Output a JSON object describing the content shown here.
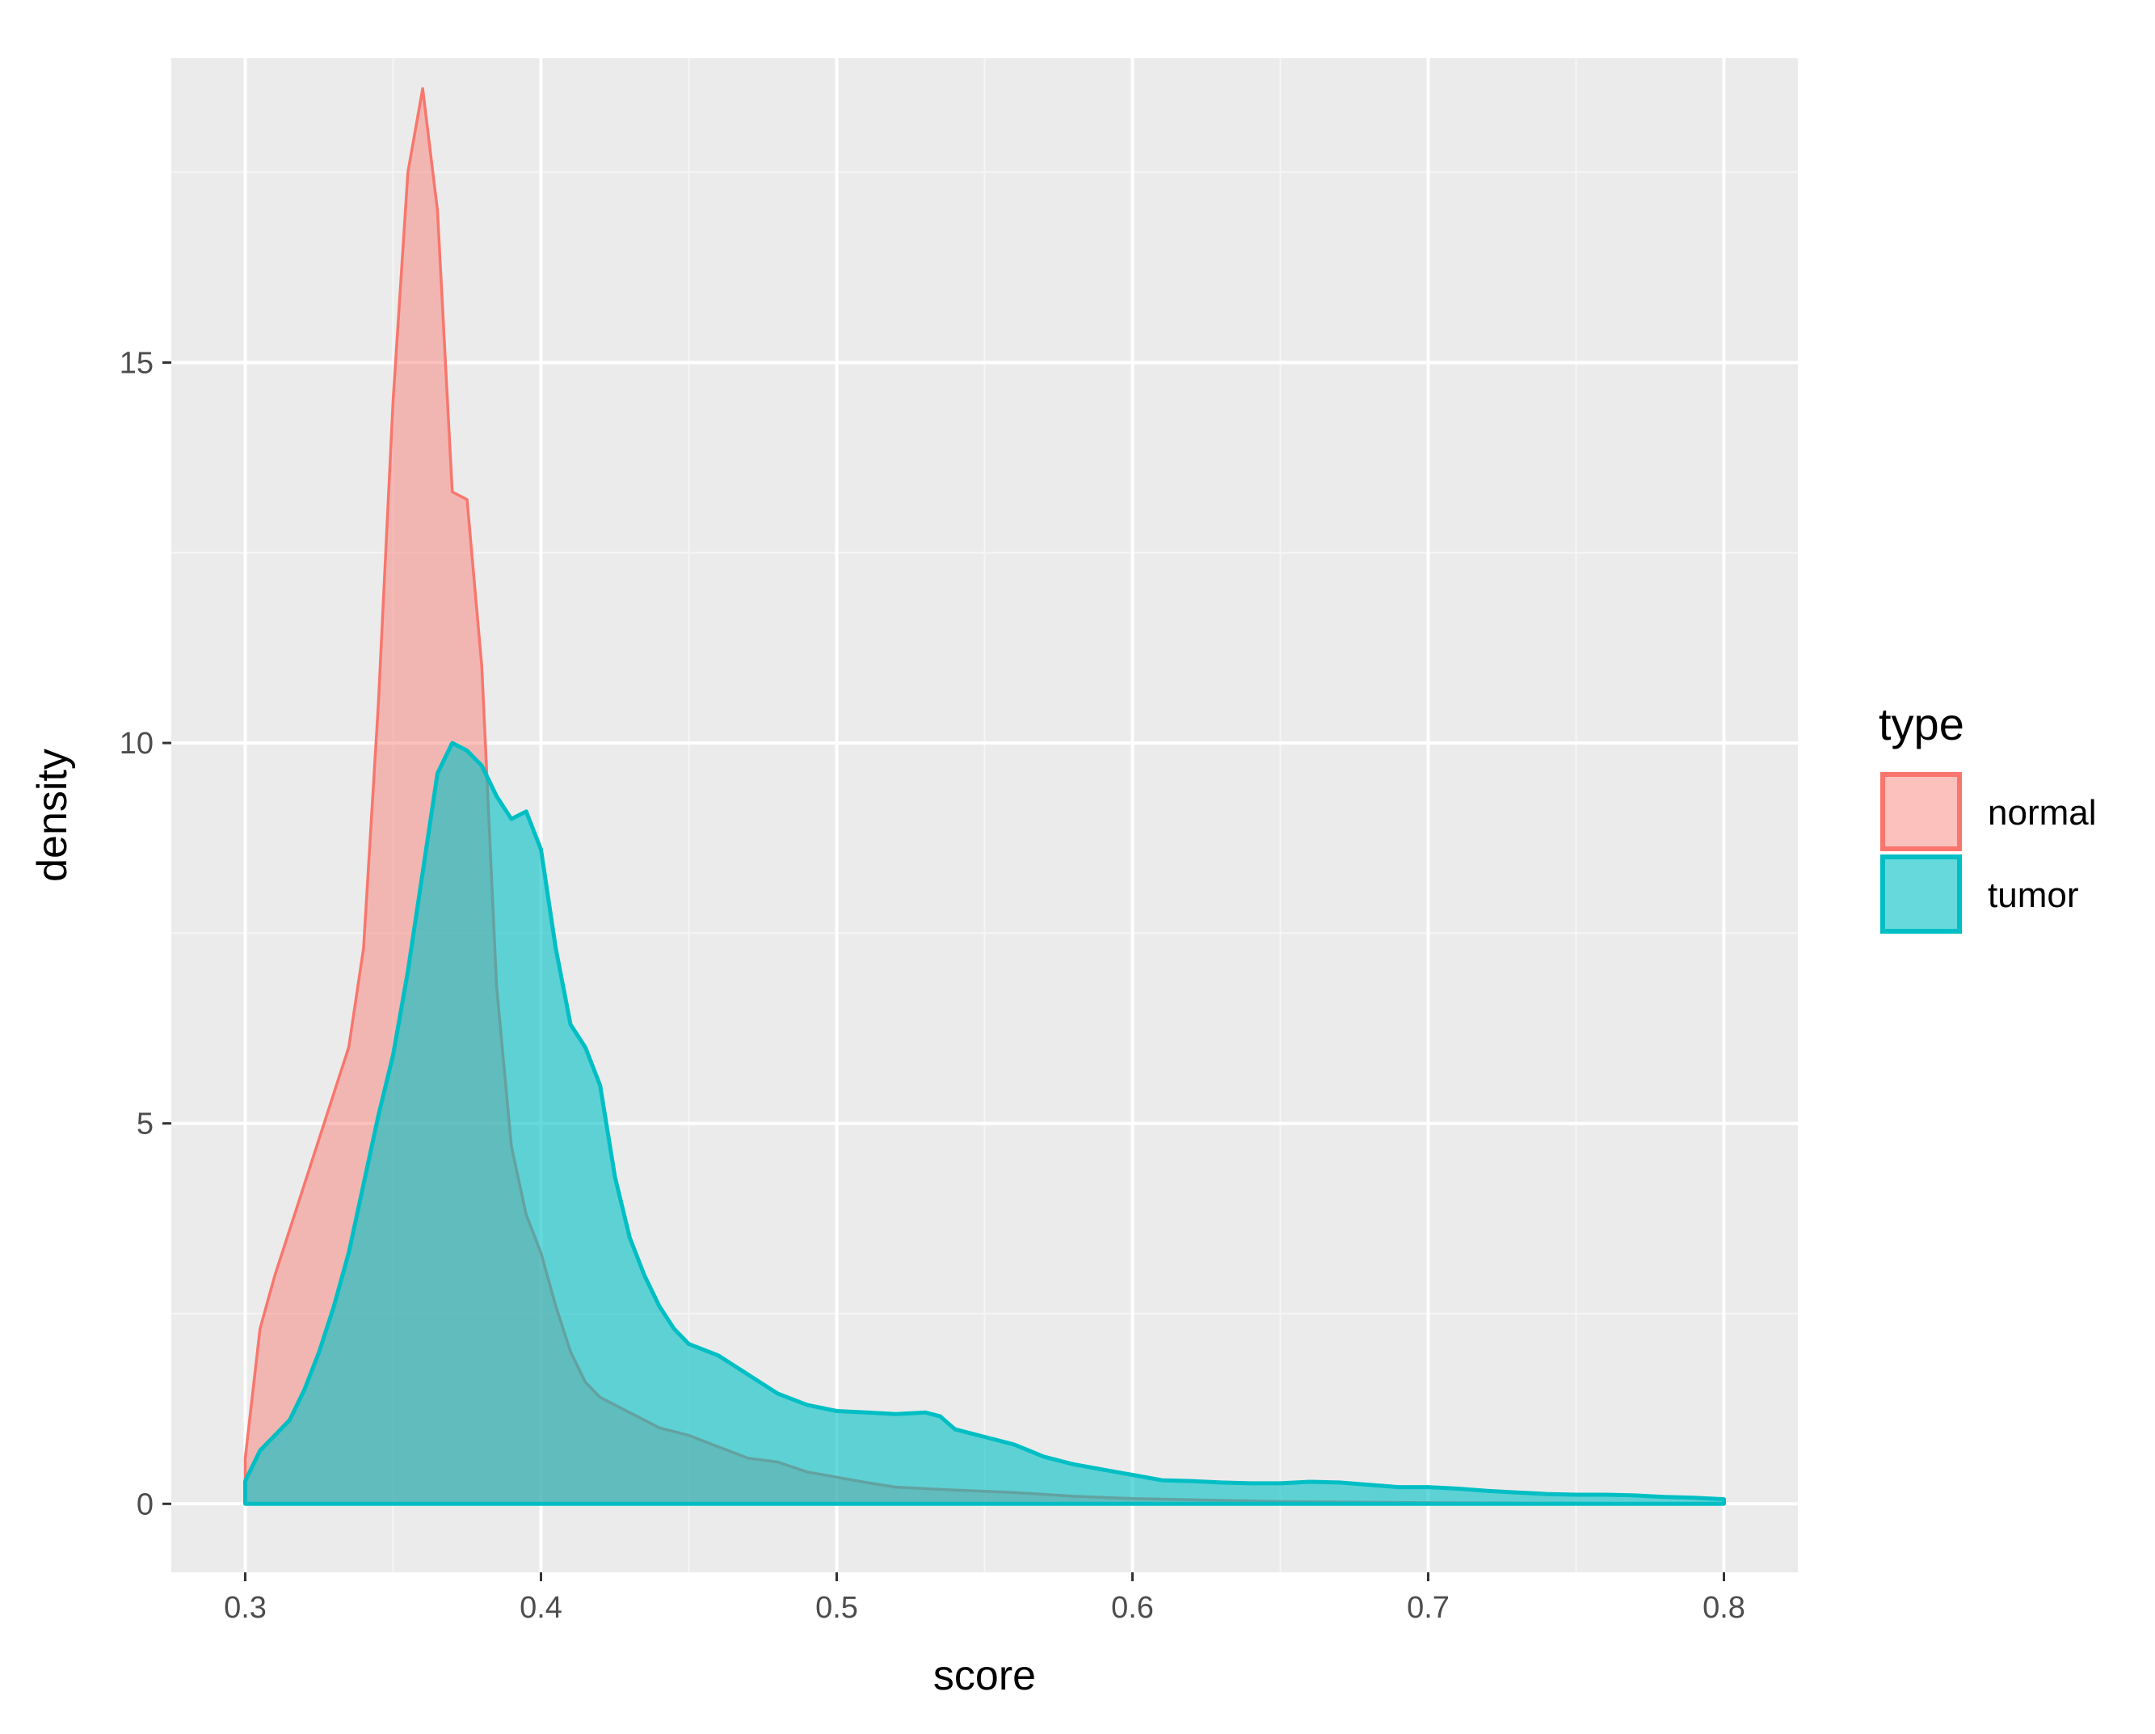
{
  "chart_data": {
    "type": "area",
    "subtype": "density",
    "title": "",
    "xlabel": "score",
    "ylabel": "density",
    "xlim": [
      0.275,
      0.825
    ],
    "ylim": [
      -0.9,
      19.0
    ],
    "x_ticks": [
      {
        "value": 0.3,
        "label": "0.3"
      },
      {
        "value": 0.4,
        "label": "0.4"
      },
      {
        "value": 0.5,
        "label": "0.5"
      },
      {
        "value": 0.6,
        "label": "0.6"
      },
      {
        "value": 0.7,
        "label": "0.7"
      },
      {
        "value": 0.8,
        "label": "0.8"
      }
    ],
    "y_ticks": [
      {
        "value": 0,
        "label": "0"
      },
      {
        "value": 5,
        "label": "5"
      },
      {
        "value": 10,
        "label": "10"
      },
      {
        "value": 15,
        "label": "15"
      }
    ],
    "grid": true,
    "legend": {
      "title": "type",
      "position": "right"
    },
    "series": [
      {
        "name": "normal",
        "color": "#F8766D",
        "points": [
          [
            0.3,
            0.6
          ],
          [
            0.305,
            2.3
          ],
          [
            0.31,
            3.0
          ],
          [
            0.315,
            3.6
          ],
          [
            0.32,
            4.2
          ],
          [
            0.325,
            4.8
          ],
          [
            0.33,
            5.4
          ],
          [
            0.335,
            6.0
          ],
          [
            0.34,
            7.3
          ],
          [
            0.345,
            10.5
          ],
          [
            0.35,
            14.5
          ],
          [
            0.355,
            17.5
          ],
          [
            0.36,
            18.6
          ],
          [
            0.365,
            17.0
          ],
          [
            0.37,
            13.3
          ],
          [
            0.375,
            13.2
          ],
          [
            0.38,
            11.0
          ],
          [
            0.385,
            6.8
          ],
          [
            0.39,
            4.7
          ],
          [
            0.395,
            3.8
          ],
          [
            0.4,
            3.3
          ],
          [
            0.405,
            2.6
          ],
          [
            0.41,
            2.0
          ],
          [
            0.415,
            1.6
          ],
          [
            0.42,
            1.4
          ],
          [
            0.43,
            1.2
          ],
          [
            0.44,
            1.0
          ],
          [
            0.45,
            0.9
          ],
          [
            0.46,
            0.75
          ],
          [
            0.47,
            0.6
          ],
          [
            0.48,
            0.55
          ],
          [
            0.49,
            0.42
          ],
          [
            0.5,
            0.35
          ],
          [
            0.51,
            0.28
          ],
          [
            0.52,
            0.22
          ],
          [
            0.54,
            0.18
          ],
          [
            0.56,
            0.15
          ],
          [
            0.58,
            0.1
          ],
          [
            0.6,
            0.07
          ],
          [
            0.65,
            0.03
          ],
          [
            0.7,
            0.015
          ],
          [
            0.75,
            0.008
          ],
          [
            0.8,
            0.0
          ]
        ]
      },
      {
        "name": "tumor",
        "color": "#00BFC4",
        "points": [
          [
            0.3,
            0.3
          ],
          [
            0.305,
            0.7
          ],
          [
            0.31,
            0.9
          ],
          [
            0.315,
            1.1
          ],
          [
            0.32,
            1.5
          ],
          [
            0.325,
            2.0
          ],
          [
            0.33,
            2.6
          ],
          [
            0.335,
            3.3
          ],
          [
            0.34,
            4.2
          ],
          [
            0.345,
            5.1
          ],
          [
            0.35,
            5.9
          ],
          [
            0.355,
            7.0
          ],
          [
            0.36,
            8.3
          ],
          [
            0.365,
            9.6
          ],
          [
            0.37,
            10.0
          ],
          [
            0.375,
            9.9
          ],
          [
            0.38,
            9.7
          ],
          [
            0.385,
            9.3
          ],
          [
            0.39,
            9.0
          ],
          [
            0.395,
            9.1
          ],
          [
            0.4,
            8.6
          ],
          [
            0.405,
            7.3
          ],
          [
            0.41,
            6.3
          ],
          [
            0.415,
            6.0
          ],
          [
            0.42,
            5.5
          ],
          [
            0.425,
            4.3
          ],
          [
            0.43,
            3.5
          ],
          [
            0.435,
            3.0
          ],
          [
            0.44,
            2.6
          ],
          [
            0.445,
            2.3
          ],
          [
            0.45,
            2.1
          ],
          [
            0.46,
            1.95
          ],
          [
            0.47,
            1.7
          ],
          [
            0.48,
            1.45
          ],
          [
            0.49,
            1.3
          ],
          [
            0.5,
            1.22
          ],
          [
            0.51,
            1.2
          ],
          [
            0.52,
            1.18
          ],
          [
            0.53,
            1.2
          ],
          [
            0.535,
            1.15
          ],
          [
            0.54,
            0.98
          ],
          [
            0.55,
            0.88
          ],
          [
            0.56,
            0.78
          ],
          [
            0.57,
            0.62
          ],
          [
            0.58,
            0.52
          ],
          [
            0.59,
            0.45
          ],
          [
            0.6,
            0.38
          ],
          [
            0.61,
            0.31
          ],
          [
            0.62,
            0.3
          ],
          [
            0.63,
            0.28
          ],
          [
            0.64,
            0.27
          ],
          [
            0.65,
            0.27
          ],
          [
            0.66,
            0.29
          ],
          [
            0.67,
            0.28
          ],
          [
            0.68,
            0.25
          ],
          [
            0.69,
            0.22
          ],
          [
            0.7,
            0.22
          ],
          [
            0.71,
            0.2
          ],
          [
            0.72,
            0.17
          ],
          [
            0.73,
            0.15
          ],
          [
            0.74,
            0.13
          ],
          [
            0.75,
            0.12
          ],
          [
            0.76,
            0.12
          ],
          [
            0.77,
            0.11
          ],
          [
            0.78,
            0.09
          ],
          [
            0.79,
            0.08
          ],
          [
            0.8,
            0.06
          ]
        ]
      }
    ]
  }
}
